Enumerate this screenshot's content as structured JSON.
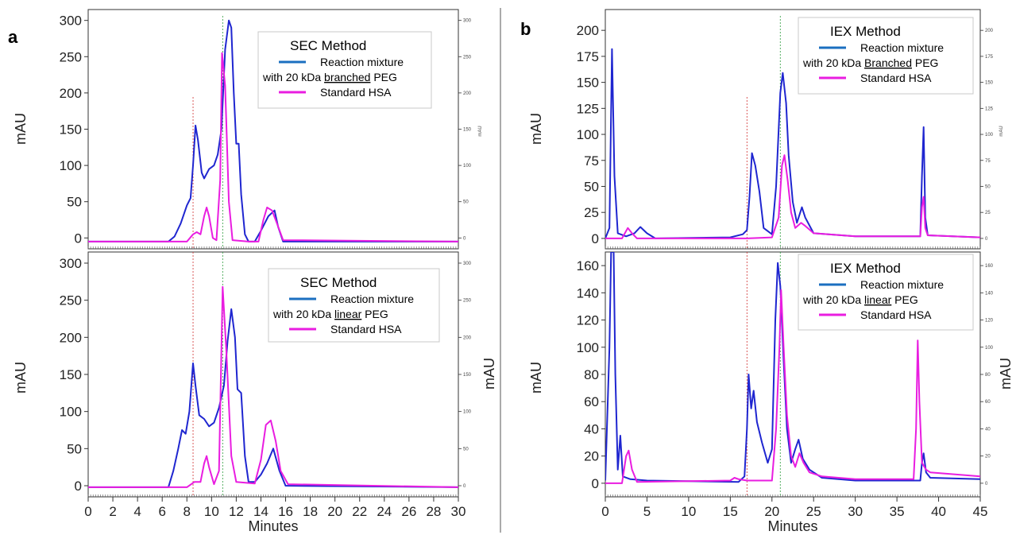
{
  "figure": {
    "colors": {
      "blue": "#1f26d0",
      "magenta": "#e91de0",
      "legend_blue": "#1b6fc0",
      "red_ref": "#d03030",
      "green_ref": "#2a9a3a"
    }
  },
  "chart_data": [
    {
      "id": "a-top",
      "type": "line",
      "panel_letter": "a",
      "legend_title": "SEC Method",
      "legend": [
        "Reaction mixture",
        "with 20 kDa ",
        "branched",
        " PEG",
        "Standard HSA"
      ],
      "ylabel": "mAU",
      "right_ylabel_small": "mAU",
      "xlabel": "",
      "xlim": [
        0,
        30
      ],
      "ylim": [
        -15,
        315
      ],
      "yticks": [
        0,
        50,
        100,
        150,
        200,
        250,
        300
      ],
      "right_yticks": [
        0,
        50,
        100,
        150,
        200,
        250,
        300
      ],
      "xticks": [],
      "ref_lines": {
        "red": 8.5,
        "green": 10.9
      },
      "series": [
        {
          "color": "blue",
          "points": [
            [
              0,
              -5
            ],
            [
              6.5,
              -5
            ],
            [
              7,
              2
            ],
            [
              7.5,
              20
            ],
            [
              8,
              45
            ],
            [
              8.3,
              55
            ],
            [
              8.5,
              100
            ],
            [
              8.7,
              155
            ],
            [
              8.9,
              135
            ],
            [
              9.2,
              90
            ],
            [
              9.4,
              82
            ],
            [
              9.8,
              95
            ],
            [
              10.2,
              100
            ],
            [
              10.5,
              115
            ],
            [
              10.8,
              150
            ],
            [
              11.1,
              260
            ],
            [
              11.4,
              300
            ],
            [
              11.6,
              290
            ],
            [
              11.8,
              200
            ],
            [
              12,
              130
            ],
            [
              12.2,
              130
            ],
            [
              12.4,
              60
            ],
            [
              12.7,
              5
            ],
            [
              13,
              -5
            ],
            [
              13.5,
              -5
            ],
            [
              14,
              10
            ],
            [
              14.6,
              30
            ],
            [
              15.1,
              38
            ],
            [
              15.4,
              15
            ],
            [
              15.8,
              -5
            ],
            [
              30,
              -5
            ]
          ]
        },
        {
          "color": "magenta",
          "points": [
            [
              0,
              -5
            ],
            [
              8,
              -5
            ],
            [
              8.5,
              5
            ],
            [
              8.8,
              8
            ],
            [
              9.1,
              5
            ],
            [
              9.4,
              30
            ],
            [
              9.6,
              42
            ],
            [
              9.8,
              30
            ],
            [
              10.1,
              0
            ],
            [
              10.4,
              -3
            ],
            [
              10.7,
              80
            ],
            [
              10.85,
              255
            ],
            [
              11.1,
              210
            ],
            [
              11.4,
              50
            ],
            [
              11.7,
              -3
            ],
            [
              13,
              -5
            ],
            [
              13.8,
              -5
            ],
            [
              14.2,
              25
            ],
            [
              14.5,
              42
            ],
            [
              14.9,
              38
            ],
            [
              15.3,
              20
            ],
            [
              15.8,
              -3
            ],
            [
              30,
              -5
            ]
          ]
        }
      ]
    },
    {
      "id": "a-bottom",
      "type": "line",
      "legend_title": "SEC Method",
      "legend": [
        "Reaction mixture",
        "with 20 kDa ",
        "linear",
        " PEG",
        "Standard HSA"
      ],
      "ylabel": "mAU",
      "right_ylabel": "mAU",
      "xlabel": "Minutes",
      "xlim": [
        0,
        30
      ],
      "ylim": [
        -15,
        315
      ],
      "yticks": [
        0,
        50,
        100,
        150,
        200,
        250,
        300
      ],
      "right_yticks": [
        0,
        50,
        100,
        150,
        200,
        250,
        300
      ],
      "xticks": [
        0,
        2,
        4,
        6,
        8,
        10,
        12,
        14,
        16,
        18,
        20,
        22,
        24,
        26,
        28,
        30
      ],
      "ref_lines": {
        "red": 8.5,
        "green": 10.9
      },
      "series": [
        {
          "color": "blue",
          "points": [
            [
              0,
              -2
            ],
            [
              6.5,
              -2
            ],
            [
              6.9,
              20
            ],
            [
              7.3,
              50
            ],
            [
              7.6,
              75
            ],
            [
              7.9,
              70
            ],
            [
              8.2,
              100
            ],
            [
              8.5,
              165
            ],
            [
              8.7,
              135
            ],
            [
              9,
              95
            ],
            [
              9.4,
              90
            ],
            [
              9.8,
              80
            ],
            [
              10.2,
              85
            ],
            [
              10.6,
              105
            ],
            [
              11,
              135
            ],
            [
              11.3,
              195
            ],
            [
              11.6,
              238
            ],
            [
              11.9,
              200
            ],
            [
              12.1,
              130
            ],
            [
              12.4,
              125
            ],
            [
              12.7,
              40
            ],
            [
              13,
              5
            ],
            [
              13.5,
              5
            ],
            [
              14,
              15
            ],
            [
              14.5,
              30
            ],
            [
              15,
              50
            ],
            [
              15.5,
              20
            ],
            [
              16,
              0
            ],
            [
              30,
              -2
            ]
          ]
        },
        {
          "color": "magenta",
          "points": [
            [
              0,
              -2
            ],
            [
              8,
              -2
            ],
            [
              8.6,
              5
            ],
            [
              9.1,
              5
            ],
            [
              9.4,
              30
            ],
            [
              9.6,
              40
            ],
            [
              9.8,
              25
            ],
            [
              10.2,
              2
            ],
            [
              10.6,
              20
            ],
            [
              10.9,
              268
            ],
            [
              11.2,
              180
            ],
            [
              11.6,
              40
            ],
            [
              12,
              5
            ],
            [
              13.5,
              3
            ],
            [
              14,
              35
            ],
            [
              14.4,
              82
            ],
            [
              14.8,
              88
            ],
            [
              15.2,
              60
            ],
            [
              15.6,
              20
            ],
            [
              16.2,
              2
            ],
            [
              30,
              -2
            ]
          ]
        }
      ]
    },
    {
      "id": "b-top",
      "type": "line",
      "panel_letter": "b",
      "legend_title": "IEX Method",
      "legend": [
        "Reaction mixture",
        "with 20 kDa ",
        "Branched",
        " PEG",
        "Standard HSA"
      ],
      "ylabel": "mAU",
      "right_ylabel_small": "mAU",
      "xlabel": "",
      "xlim": [
        0,
        45
      ],
      "ylim": [
        -10,
        220
      ],
      "yticks": [
        0,
        25,
        50,
        75,
        100,
        125,
        150,
        175,
        200
      ],
      "right_yticks": [
        0,
        25,
        50,
        75,
        100,
        125,
        150,
        175,
        200
      ],
      "xticks": [],
      "ref_lines": {
        "red": 17,
        "green": 21
      },
      "series": [
        {
          "color": "blue",
          "points": [
            [
              0,
              0
            ],
            [
              0.5,
              10
            ],
            [
              0.8,
              182
            ],
            [
              1.1,
              60
            ],
            [
              1.5,
              5
            ],
            [
              2.5,
              2
            ],
            [
              3.5,
              5
            ],
            [
              4.2,
              11
            ],
            [
              5,
              5
            ],
            [
              6,
              0
            ],
            [
              15,
              1
            ],
            [
              16.5,
              4
            ],
            [
              17,
              8
            ],
            [
              17.3,
              40
            ],
            [
              17.6,
              82
            ],
            [
              18,
              70
            ],
            [
              18.5,
              45
            ],
            [
              19,
              10
            ],
            [
              20,
              4
            ],
            [
              20.5,
              50
            ],
            [
              21,
              140
            ],
            [
              21.3,
              159
            ],
            [
              21.7,
              130
            ],
            [
              22,
              80
            ],
            [
              22.5,
              35
            ],
            [
              23,
              15
            ],
            [
              23.6,
              30
            ],
            [
              24,
              20
            ],
            [
              25,
              5
            ],
            [
              30,
              2
            ],
            [
              37.8,
              2
            ],
            [
              38,
              60
            ],
            [
              38.2,
              107
            ],
            [
              38.4,
              20
            ],
            [
              38.7,
              3
            ],
            [
              45,
              1
            ]
          ]
        },
        {
          "color": "magenta",
          "points": [
            [
              0,
              0
            ],
            [
              2,
              0
            ],
            [
              2.7,
              10
            ],
            [
              3.2,
              5
            ],
            [
              3.8,
              0
            ],
            [
              16,
              0
            ],
            [
              17,
              0
            ],
            [
              20,
              1
            ],
            [
              20.8,
              20
            ],
            [
              21.2,
              70
            ],
            [
              21.5,
              80
            ],
            [
              21.9,
              55
            ],
            [
              22.3,
              25
            ],
            [
              22.8,
              10
            ],
            [
              23.5,
              15
            ],
            [
              24,
              12
            ],
            [
              25,
              5
            ],
            [
              30,
              2
            ],
            [
              37.8,
              2
            ],
            [
              38,
              30
            ],
            [
              38.2,
              40
            ],
            [
              38.4,
              10
            ],
            [
              38.7,
              3
            ],
            [
              45,
              1
            ]
          ]
        }
      ]
    },
    {
      "id": "b-bottom",
      "type": "line",
      "legend_title": "IEX Method",
      "legend": [
        "Reaction mixture",
        "with 20 kDa ",
        "linear",
        " PEG",
        "Standard HSA"
      ],
      "ylabel": "mAU",
      "right_ylabel": "mAU",
      "xlabel": "Minutes",
      "xlim": [
        0,
        45
      ],
      "ylim": [
        -10,
        170
      ],
      "yticks": [
        0,
        20,
        40,
        60,
        80,
        100,
        120,
        140,
        160
      ],
      "right_yticks": [
        0,
        20,
        40,
        60,
        80,
        100,
        120,
        140,
        160
      ],
      "xticks": [
        0,
        5,
        10,
        15,
        20,
        25,
        30,
        35,
        40,
        45
      ],
      "ref_lines": {
        "red": 17,
        "green": 21
      },
      "series": [
        {
          "color": "blue",
          "points": [
            [
              0,
              2
            ],
            [
              0.5,
              100
            ],
            [
              0.7,
              170
            ],
            [
              1,
              170
            ],
            [
              1.2,
              80
            ],
            [
              1.5,
              10
            ],
            [
              1.8,
              35
            ],
            [
              2.1,
              5
            ],
            [
              3,
              3
            ],
            [
              5,
              2
            ],
            [
              16,
              1
            ],
            [
              16.7,
              5
            ],
            [
              17,
              40
            ],
            [
              17.2,
              80
            ],
            [
              17.5,
              55
            ],
            [
              17.8,
              68
            ],
            [
              18.2,
              45
            ],
            [
              18.8,
              30
            ],
            [
              19.5,
              15
            ],
            [
              20,
              25
            ],
            [
              20.4,
              120
            ],
            [
              20.7,
              162
            ],
            [
              21,
              145
            ],
            [
              21.4,
              90
            ],
            [
              21.8,
              40
            ],
            [
              22.3,
              15
            ],
            [
              22.8,
              25
            ],
            [
              23.2,
              32
            ],
            [
              23.7,
              18
            ],
            [
              24.5,
              10
            ],
            [
              26,
              4
            ],
            [
              30,
              2
            ],
            [
              37.8,
              2
            ],
            [
              38,
              15
            ],
            [
              38.2,
              22
            ],
            [
              38.5,
              8
            ],
            [
              39,
              4
            ],
            [
              45,
              3
            ]
          ]
        },
        {
          "color": "magenta",
          "points": [
            [
              0,
              0
            ],
            [
              2,
              0
            ],
            [
              2.5,
              20
            ],
            [
              2.8,
              24
            ],
            [
              3.2,
              10
            ],
            [
              3.8,
              1
            ],
            [
              15,
              2
            ],
            [
              15.5,
              4
            ],
            [
              16,
              3
            ],
            [
              17,
              2
            ],
            [
              20,
              2
            ],
            [
              20.5,
              40
            ],
            [
              20.9,
              100
            ],
            [
              21.1,
              142
            ],
            [
              21.4,
              100
            ],
            [
              21.8,
              50
            ],
            [
              22.3,
              20
            ],
            [
              22.8,
              12
            ],
            [
              23.3,
              22
            ],
            [
              23.8,
              15
            ],
            [
              24.5,
              8
            ],
            [
              26,
              5
            ],
            [
              30,
              3
            ],
            [
              37,
              3
            ],
            [
              37.3,
              40
            ],
            [
              37.5,
              105
            ],
            [
              37.7,
              60
            ],
            [
              38,
              15
            ],
            [
              38.5,
              10
            ],
            [
              39,
              8
            ],
            [
              45,
              5
            ]
          ]
        }
      ]
    }
  ]
}
